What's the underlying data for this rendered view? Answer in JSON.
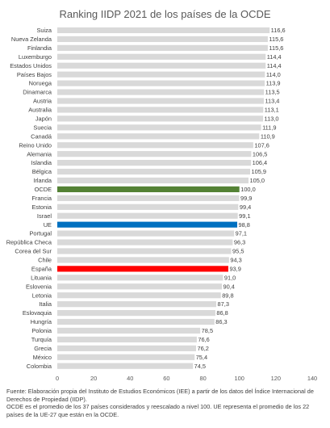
{
  "chart_data": {
    "type": "bar",
    "orientation": "horizontal",
    "title": "Ranking IIDP 2021 de los países de la OCDE",
    "categories": [
      "Suiza",
      "Nueva Zelanda",
      "Finlandia",
      "Luxemburgo",
      "Estados Unidos",
      "Países Bajos",
      "Noruega",
      "Dinamarca",
      "Austria",
      "Australia",
      "Japón",
      "Suecia",
      "Canadá",
      "Reino Unido",
      "Alemania",
      "Islandia",
      "Bélgica",
      "Irlanda",
      "OCDE",
      "Francia",
      "Estonia",
      "Israel",
      "UE",
      "Portugal",
      "República Checa",
      "Corea del Sur",
      "Chile",
      "España",
      "Lituania",
      "Eslovenia",
      "Letonia",
      "Italia",
      "Eslovaquia",
      "Hungría",
      "Polonia",
      "Turquía",
      "Grecia",
      "México",
      "Colombia"
    ],
    "values": [
      116.6,
      115.6,
      115.6,
      114.4,
      114.4,
      114.0,
      113.9,
      113.5,
      113.4,
      113.1,
      113.0,
      111.9,
      110.9,
      107.6,
      106.5,
      106.4,
      105.9,
      105.0,
      100.0,
      99.9,
      99.4,
      99.1,
      98.8,
      97.1,
      96.3,
      95.5,
      94.3,
      93.9,
      91.0,
      90.4,
      89.8,
      87.3,
      86.8,
      86.3,
      78.5,
      76.6,
      76.2,
      75.4,
      74.5
    ],
    "value_labels": [
      "116,6",
      "115,6",
      "115,6",
      "114,4",
      "114,4",
      "114,0",
      "113,9",
      "113,5",
      "113,4",
      "113,1",
      "113,0",
      "111,9",
      "110,9",
      "107,6",
      "106,5",
      "106,4",
      "105,9",
      "105,0",
      "100,0",
      "99,9",
      "99,4",
      "99,1",
      "98,8",
      "97,1",
      "96,3",
      "95,5",
      "94,3",
      "93,9",
      "91,0",
      "90,4",
      "89,8",
      "87,3",
      "86,8",
      "86,3",
      "78,5",
      "76,6",
      "76,2",
      "75,4",
      "74,5"
    ],
    "xlim": [
      0,
      140
    ],
    "xticks": [
      "0",
      "20",
      "40",
      "60",
      "80",
      "100",
      "120",
      "140"
    ],
    "grid": false,
    "default_color": "#d9d9d9",
    "highlight_colors": {
      "OCDE": "#548235",
      "UE": "#0070c0",
      "España": "#ff0000"
    }
  },
  "source_note": [
    "Fuente: Elaboración propia del Instituto de Estudios Económicos (IEE) a partir de los datos del Índice Internacional de Derechos de Propiedad (IIDP).",
    "OCDE es el promedio de los 37 países considerados y reescalado a nivel 100. UE representa el promedio de los 22 países de la UE-27 que están en la OCDE."
  ]
}
